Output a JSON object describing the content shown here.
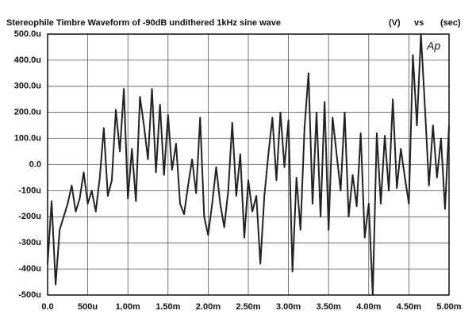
{
  "chart_data": {
    "type": "line",
    "title": "Stereophile  Timbre Waveform of -90dB undithered 1kHz sine wave",
    "y_unit": "(V)",
    "vs_label": "vs",
    "x_unit": "(sec)",
    "annotation": "Ap",
    "x": [
      0,
      5e-05,
      0.0001,
      0.00015,
      0.0002,
      0.00025,
      0.0003,
      0.00035,
      0.0004,
      0.00045,
      0.0005,
      0.00055,
      0.0006,
      0.00065,
      0.0007,
      0.00075,
      0.0008,
      0.00085,
      0.0009,
      0.00095,
      0.001,
      0.00105,
      0.0011,
      0.00115,
      0.0012,
      0.00125,
      0.0013,
      0.00135,
      0.0014,
      0.00145,
      0.0015,
      0.00155,
      0.0016,
      0.00165,
      0.0017,
      0.00175,
      0.0018,
      0.00185,
      0.0019,
      0.00195,
      0.002,
      0.00205,
      0.0021,
      0.00215,
      0.0022,
      0.00225,
      0.0023,
      0.00235,
      0.0024,
      0.00245,
      0.0025,
      0.00255,
      0.0026,
      0.00265,
      0.0027,
      0.00275,
      0.0028,
      0.00285,
      0.0029,
      0.00295,
      0.003,
      0.00305,
      0.0031,
      0.00315,
      0.0032,
      0.00325,
      0.0033,
      0.00335,
      0.0034,
      0.00345,
      0.0035,
      0.00355,
      0.0036,
      0.00365,
      0.0037,
      0.00375,
      0.0038,
      0.00385,
      0.0039,
      0.00395,
      0.004,
      0.00405,
      0.0041,
      0.00415,
      0.0042,
      0.00425,
      0.0043,
      0.00435,
      0.0044,
      0.00445,
      0.0045,
      0.00455,
      0.0046,
      0.00465,
      0.0047,
      0.00475,
      0.0048,
      0.00485,
      0.0049,
      0.00495,
      0.005
    ],
    "series": [
      {
        "color": "#222222",
        "values": [
          -0.00038,
          -0.00014,
          -0.00046,
          -0.00025,
          -0.0002,
          -0.00015,
          -8e-05,
          -0.00018,
          -0.00013,
          -3e-05,
          -0.00015,
          -0.0001,
          -0.00018,
          -5e-05,
          0.00014,
          -0.00012,
          -6e-05,
          0.00021,
          5e-05,
          0.00029,
          -0.00013,
          6e-05,
          -0.00014,
          0.00026,
          0.00015,
          2e-05,
          0.00029,
          -3e-05,
          0.00023,
          -4e-05,
          0.00019,
          -2e-05,
          8e-05,
          -0.00015,
          -0.00019,
          -8e-05,
          2e-05,
          -0.00011,
          0.00018,
          -0.0002,
          -0.00027,
          -0.00015,
          -1e-05,
          -0.00015,
          -0.00024,
          -0.0001,
          0.00016,
          -0.00012,
          4e-05,
          -0.00028,
          -6e-05,
          -0.00018,
          -0.00012,
          -0.00038,
          -0.00012,
          4e-05,
          0.00018,
          -6e-05,
          0.0002,
          -1e-05,
          0.00017,
          -0.00041,
          -5e-05,
          -0.00025,
          0.00014,
          0.00035,
          -0.00015,
          0.0002,
          -0.0002,
          0.00024,
          -0.00025,
          0.00018,
          4e-05,
          -0.0001,
          0.0002,
          -0.0002,
          -4e-05,
          -0.00016,
          0.00012,
          -0.00028,
          -0.00015,
          -0.0005,
          0.00012,
          -0.00015,
          0.00011,
          -0.0001,
          0.00025,
          -9e-05,
          6e-05,
          -5e-05,
          -0.00015,
          0.00042,
          0.00015,
          0.0005,
          0.00022,
          -8e-05,
          0.00015,
          -5e-05,
          0.0001,
          -0.00017,
          0.00015
        ]
      }
    ],
    "xlim": [
      0,
      0.005
    ],
    "ylim": [
      -0.0005,
      0.0005
    ],
    "xticks": [
      {
        "value": 0,
        "label": "0.0"
      },
      {
        "value": 0.0005,
        "label": "500u"
      },
      {
        "value": 0.001,
        "label": "1.00m"
      },
      {
        "value": 0.0015,
        "label": "1.50m"
      },
      {
        "value": 0.002,
        "label": "2.00m"
      },
      {
        "value": 0.0025,
        "label": "2.50m"
      },
      {
        "value": 0.003,
        "label": "3.00m"
      },
      {
        "value": 0.0035,
        "label": "3.50m"
      },
      {
        "value": 0.004,
        "label": "4.00m"
      },
      {
        "value": 0.0045,
        "label": "4.50m"
      },
      {
        "value": 0.005,
        "label": "5.00m"
      }
    ],
    "yticks": [
      {
        "value": 0.0005,
        "label": "500.0u"
      },
      {
        "value": 0.0004,
        "label": "400.0u"
      },
      {
        "value": 0.0003,
        "label": "300.0u"
      },
      {
        "value": 0.0002,
        "label": "200.0u"
      },
      {
        "value": 0.0001,
        "label": "100.0u"
      },
      {
        "value": 0,
        "label": "0.0"
      },
      {
        "value": -0.0001,
        "label": "-100u"
      },
      {
        "value": -0.0002,
        "label": "-200u"
      },
      {
        "value": -0.0003,
        "label": "-300u"
      },
      {
        "value": -0.0004,
        "label": "-400u"
      },
      {
        "value": -0.0005,
        "label": "-500u"
      }
    ],
    "grid": true
  }
}
